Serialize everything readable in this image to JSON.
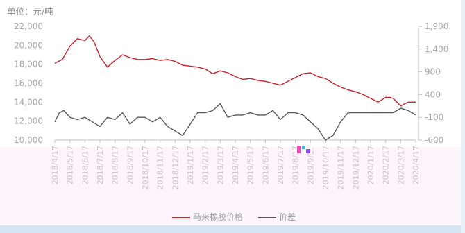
{
  "unit_label": "单位：元/吨",
  "colors": {
    "price": "#cc1f2a",
    "spread": "#595959",
    "axis": "#a6a6a6",
    "tick_text": "#a6a6a6",
    "band": "#fcf5fb"
  },
  "legend": {
    "price_label": "马来橡胶价格",
    "spread_label": "价差"
  },
  "chart_data": {
    "type": "line",
    "left_axis": {
      "min": 10000,
      "max": 22000,
      "ticks": [
        "22,000",
        "20,000",
        "18,000",
        "16,000",
        "14,000",
        "12,000",
        "10,000"
      ]
    },
    "right_axis": {
      "min": -600,
      "max": 1900,
      "ticks": [
        "1,900",
        "1,400",
        "900",
        "400",
        "-100",
        "-600"
      ]
    },
    "x_ticks": [
      "2018/4/17",
      "2018/5/17",
      "2018/6/17",
      "2018/7/17",
      "2018/8/17",
      "2018/9/17",
      "2018/10/17",
      "2018/11/17",
      "2018/12/17",
      "2019/1/17",
      "2019/2/17",
      "2019/3/17",
      "2019/4/17",
      "2019/5/17",
      "2019/6/17",
      "2019/7/17",
      "2019/8/17",
      "2019/9/17",
      "2019/10/17",
      "2019/11/17",
      "2019/12/17",
      "2020/1/17",
      "2020/2/17",
      "2020/3/17",
      "2020/4/17"
    ],
    "series": [
      {
        "name": "马来橡胶价格",
        "axis": "left",
        "x": [
          0,
          0.5,
          1,
          1.5,
          2,
          2.3,
          2.6,
          3,
          3.5,
          4,
          4.5,
          5,
          5.5,
          6,
          6.5,
          7,
          7.5,
          8,
          8.5,
          9,
          9.5,
          10,
          10.5,
          11,
          11.5,
          12,
          12.5,
          13,
          13.5,
          14,
          14.5,
          15,
          15.5,
          16,
          16.5,
          17,
          17.5,
          18,
          18.5,
          19,
          19.5,
          20,
          20.5,
          21,
          21.5,
          22,
          22.3,
          22.5,
          23,
          23.5,
          24
        ],
        "values": [
          18100,
          18500,
          19900,
          20700,
          20500,
          21000,
          20400,
          18800,
          17700,
          18400,
          19000,
          18700,
          18500,
          18500,
          18600,
          18400,
          18500,
          18300,
          17900,
          17800,
          17700,
          17500,
          17000,
          17300,
          17100,
          16700,
          16400,
          16500,
          16300,
          16200,
          16000,
          15800,
          16200,
          16600,
          17000,
          17100,
          16700,
          16500,
          16000,
          15600,
          15300,
          15100,
          14800,
          14400,
          14000,
          14500,
          14500,
          14400,
          13600,
          14000,
          14000
        ]
      },
      {
        "name": "价差",
        "axis": "right",
        "x": [
          0,
          0.3,
          0.6,
          1,
          1.5,
          2,
          2.5,
          3,
          3.5,
          4,
          4.5,
          5,
          5.5,
          6,
          6.5,
          7,
          7.5,
          8,
          8.5,
          9,
          9.5,
          10,
          10.5,
          11,
          11.5,
          12,
          12.5,
          13,
          13.5,
          14,
          14.5,
          15,
          15.5,
          16,
          16.5,
          17,
          17.5,
          18,
          18.5,
          19,
          19.5,
          20,
          21,
          22,
          22.5,
          23,
          23.5,
          24
        ],
        "values": [
          -200,
          0,
          50,
          -100,
          -150,
          -100,
          -200,
          -300,
          -100,
          -150,
          0,
          -250,
          -100,
          -100,
          -200,
          -100,
          -300,
          -400,
          -500,
          -250,
          0,
          0,
          50,
          200,
          -100,
          -50,
          -50,
          0,
          -50,
          -50,
          50,
          -150,
          0,
          0,
          -50,
          -200,
          -350,
          -600,
          -500,
          -200,
          0,
          0,
          0,
          0,
          0,
          100,
          50,
          -50
        ]
      }
    ]
  }
}
